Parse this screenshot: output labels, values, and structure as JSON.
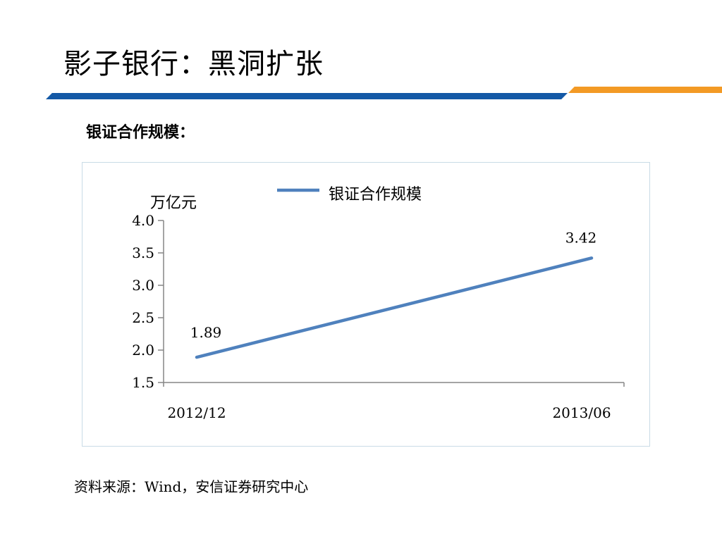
{
  "slide": {
    "title": "影子银行：黑洞扩张",
    "subtitle": "银证合作规模：",
    "source": "资料来源：Wind，安信证券研究中心"
  },
  "colors": {
    "rule_blue": "#1459a6",
    "rule_orange": "#f39a25",
    "series_line": "#4f81bd",
    "axis": "#868686"
  },
  "chart_data": {
    "type": "line",
    "title": "",
    "xlabel": "",
    "ylabel": "万亿元",
    "categories": [
      "2012/12",
      "2013/06"
    ],
    "series": [
      {
        "name": "银证合作规模",
        "values": [
          1.89,
          3.42
        ],
        "data_labels": [
          "1.89",
          "3.42"
        ]
      }
    ],
    "ylim": [
      1.5,
      4.0
    ],
    "yticks": [
      1.5,
      2.0,
      2.5,
      3.0,
      3.5,
      4.0
    ],
    "ytick_labels": [
      "1.5",
      "2.0",
      "2.5",
      "3.0",
      "3.5",
      "4.0"
    ],
    "grid": false,
    "legend": "top-center"
  }
}
